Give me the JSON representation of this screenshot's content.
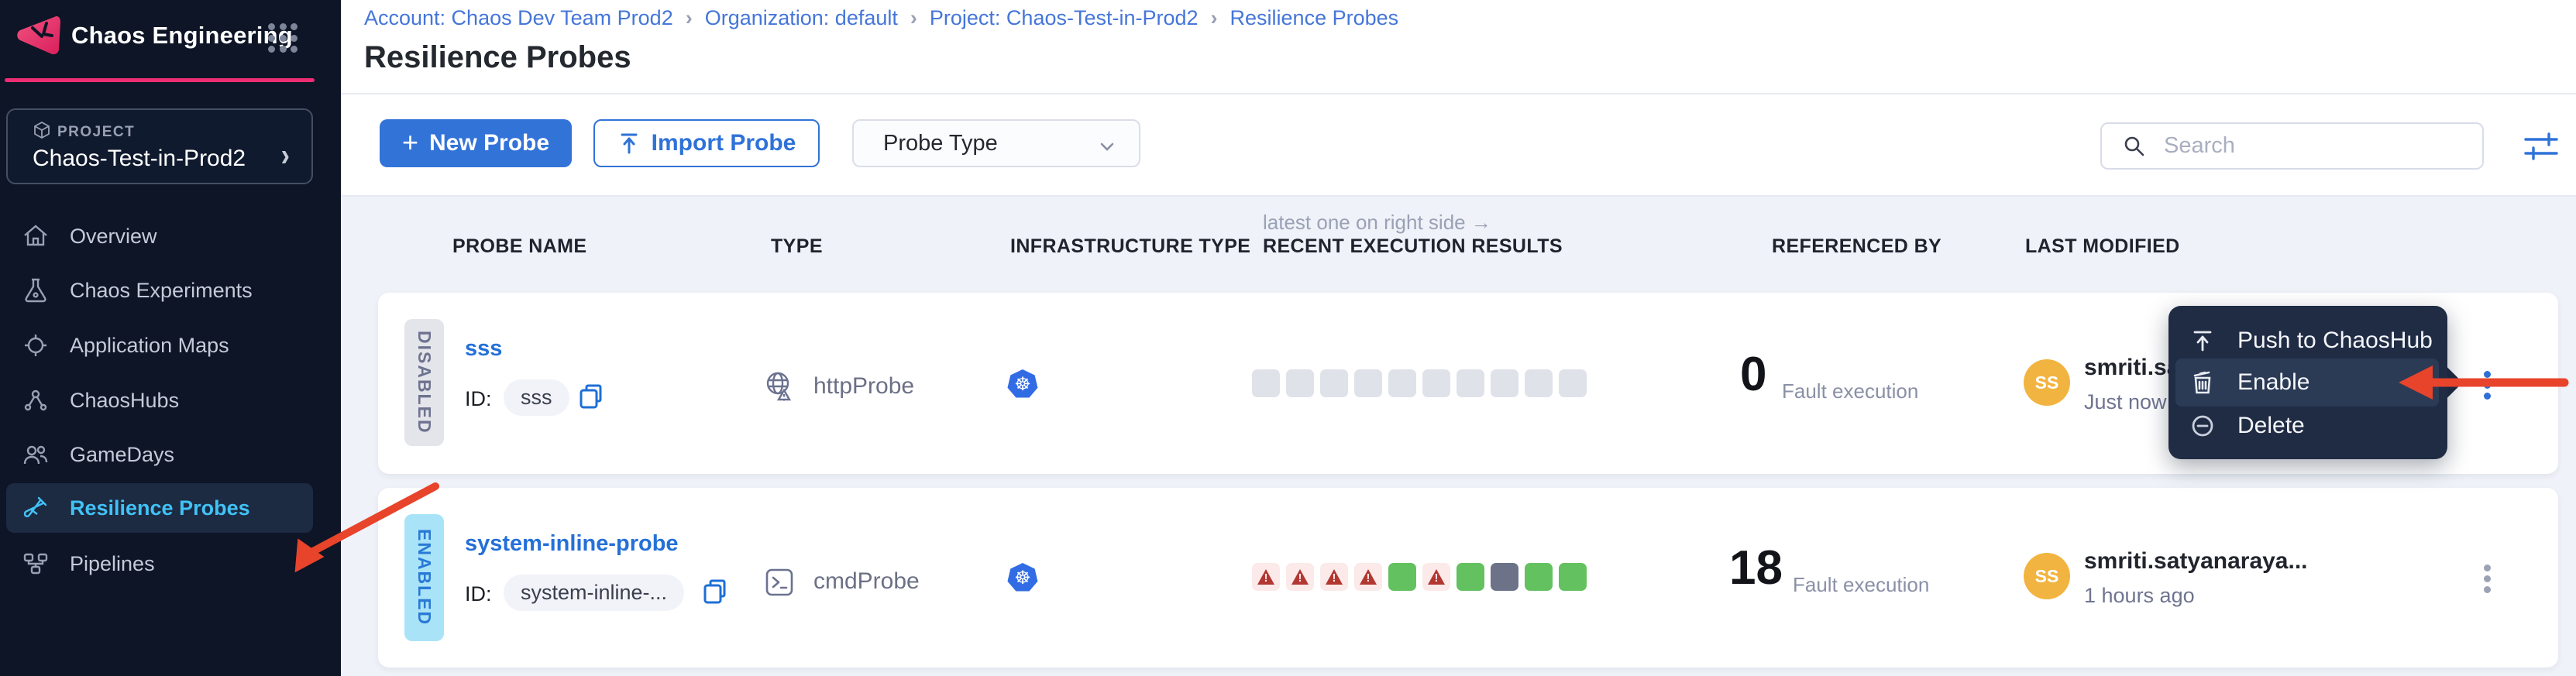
{
  "app": {
    "title": "Chaos Engineering"
  },
  "sidebar": {
    "project_label": "PROJECT",
    "project_name": "Chaos-Test-in-Prod2",
    "items": [
      {
        "label": "Overview"
      },
      {
        "label": "Chaos Experiments"
      },
      {
        "label": "Application Maps"
      },
      {
        "label": "ChaosHubs"
      },
      {
        "label": "GameDays"
      },
      {
        "label": "Resilience Probes"
      },
      {
        "label": "Pipelines"
      }
    ]
  },
  "breadcrumb": {
    "sep": "›",
    "parts": [
      "Account: Chaos Dev Team Prod2",
      "Organization: default",
      "Project: Chaos-Test-in-Prod2",
      "Resilience Probes"
    ]
  },
  "page": {
    "title": "Resilience Probes"
  },
  "toolbar": {
    "new_probe_plus": "+",
    "new_probe": "New Probe",
    "import_probe": "Import Probe",
    "probe_type": "Probe Type"
  },
  "search": {
    "placeholder": "Search"
  },
  "table": {
    "note": "latest one on right side →",
    "headers": [
      "PROBE NAME",
      "TYPE",
      "INFRASTRUCTURE TYPE",
      "RECENT EXECUTION RESULTS",
      "REFERENCED BY",
      "LAST MODIFIED"
    ],
    "rows": [
      {
        "status": "DISABLED",
        "name": "sss",
        "id_label": "ID:",
        "id_value": "sss",
        "type": "httpProbe",
        "infrastructure": "Kubernetes",
        "executions": [
          "none",
          "none",
          "none",
          "none",
          "none",
          "none",
          "none",
          "none",
          "none",
          "none"
        ],
        "referenced_count": "0",
        "referenced_label": "Fault execution",
        "avatar_initials": "SS",
        "modified_by": "smriti.saty",
        "modified_time": "Just now"
      },
      {
        "status": "ENABLED",
        "name": "system-inline-probe",
        "id_label": "ID:",
        "id_value": "system-inline-...",
        "type": "cmdProbe",
        "infrastructure": "Kubernetes",
        "executions": [
          "failed",
          "failed",
          "failed",
          "failed",
          "passed",
          "failed",
          "passed",
          "na",
          "passed",
          "passed"
        ],
        "referenced_count": "18",
        "referenced_label": "Fault execution",
        "avatar_initials": "SS",
        "modified_by": "smriti.satyanaraya...",
        "modified_time": "1 hours ago"
      }
    ]
  },
  "context_menu": {
    "items": [
      {
        "label": "Push to ChaosHub"
      },
      {
        "label": "Enable"
      },
      {
        "label": "Delete"
      }
    ]
  },
  "colors": {
    "accent_blue": "#3273D8",
    "link_blue": "#4576D9",
    "probe_link_blue": "#2470D8",
    "brand_pink": "#EC2D72",
    "sidebar_bg": "#0D1526",
    "active_item_blue": "#41C2F5",
    "menu_bg": "#202C44",
    "success_green": "#63C15F",
    "error_red": "#B23731",
    "error_square_bg": "#FBEAE9",
    "neutral_square": "#E0E2EA",
    "na_square": "#6C7389",
    "enabled_badge_bg": "#A9E3F8",
    "enabled_badge_text": "#2979D6",
    "disabled_badge_bg": "#E4E5EA",
    "disabled_badge_text": "#6E7390",
    "avatar_bg": "#F2B440",
    "kubernetes_blue": "#326CE5",
    "annotation_red": "#E8432B"
  }
}
